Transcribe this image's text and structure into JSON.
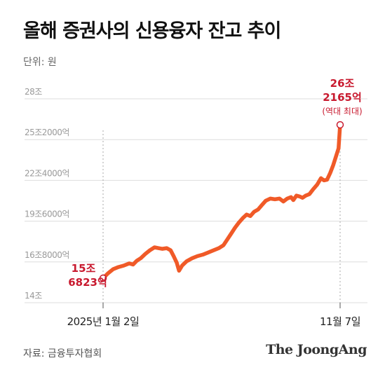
{
  "title": "올해 증권사의 신용융자 잔고 추이",
  "unit": "단위: 원",
  "source": "자료: 금융투자협회",
  "brand": "The JoongAng",
  "colors": {
    "line": "#f05a28",
    "annotation": "#c8192e",
    "grid": "#dddddd",
    "tick_text": "#9a9a9a",
    "guide": "#aaaaaa"
  },
  "chart_data": {
    "type": "line",
    "ylabel": "",
    "xlabel": "",
    "y_unit": "억원",
    "ylim": [
      140000,
      280000
    ],
    "yticks": [
      {
        "value": 140000,
        "label": "14조"
      },
      {
        "value": 168000,
        "label": "16조8000억"
      },
      {
        "value": 196000,
        "label": "19조6000억"
      },
      {
        "value": 224000,
        "label": "22조4000억"
      },
      {
        "value": 252000,
        "label": "25조2000억"
      },
      {
        "value": 280000,
        "label": "28조"
      }
    ],
    "xlim": [
      "2025-01-02",
      "2025-11-07"
    ],
    "xticks": [
      {
        "date": "2025-01-02",
        "label": "2025년 1월 2일"
      },
      {
        "date": "2025-11-07",
        "label": "11월 7일"
      }
    ],
    "grid": true,
    "series": [
      {
        "points": [
          [
            "2025-01-02",
            156823
          ],
          [
            "2025-01-08",
            160000
          ],
          [
            "2025-01-15",
            163000
          ],
          [
            "2025-01-22",
            164500
          ],
          [
            "2025-01-29",
            165500
          ],
          [
            "2025-02-05",
            167000
          ],
          [
            "2025-02-10",
            166200
          ],
          [
            "2025-02-15",
            168800
          ],
          [
            "2025-02-20",
            170500
          ],
          [
            "2025-02-26",
            173500
          ],
          [
            "2025-03-04",
            176000
          ],
          [
            "2025-03-10",
            178000
          ],
          [
            "2025-03-15",
            177500
          ],
          [
            "2025-03-20",
            177000
          ],
          [
            "2025-03-26",
            177500
          ],
          [
            "2025-03-31",
            176000
          ],
          [
            "2025-04-04",
            172000
          ],
          [
            "2025-04-08",
            167500
          ],
          [
            "2025-04-11",
            162000
          ],
          [
            "2025-04-15",
            165500
          ],
          [
            "2025-04-21",
            168500
          ],
          [
            "2025-04-28",
            170500
          ],
          [
            "2025-05-05",
            172000
          ],
          [
            "2025-05-12",
            173000
          ],
          [
            "2025-05-19",
            174500
          ],
          [
            "2025-05-26",
            176000
          ],
          [
            "2025-06-02",
            177500
          ],
          [
            "2025-06-08",
            179500
          ],
          [
            "2025-06-13",
            183500
          ],
          [
            "2025-06-18",
            187500
          ],
          [
            "2025-06-23",
            191500
          ],
          [
            "2025-06-28",
            195000
          ],
          [
            "2025-07-03",
            198000
          ],
          [
            "2025-07-08",
            200500
          ],
          [
            "2025-07-13",
            199500
          ],
          [
            "2025-07-18",
            202500
          ],
          [
            "2025-07-23",
            204000
          ],
          [
            "2025-07-28",
            207000
          ],
          [
            "2025-08-02",
            210000
          ],
          [
            "2025-08-08",
            211500
          ],
          [
            "2025-08-14",
            211000
          ],
          [
            "2025-08-20",
            211500
          ],
          [
            "2025-08-25",
            209500
          ],
          [
            "2025-08-30",
            211500
          ],
          [
            "2025-09-04",
            212500
          ],
          [
            "2025-09-07",
            210500
          ],
          [
            "2025-09-11",
            213500
          ],
          [
            "2025-09-15",
            213000
          ],
          [
            "2025-09-19",
            212000
          ],
          [
            "2025-09-23",
            213500
          ],
          [
            "2025-09-28",
            214500
          ],
          [
            "2025-10-03",
            218000
          ],
          [
            "2025-10-08",
            221000
          ],
          [
            "2025-10-13",
            225500
          ],
          [
            "2025-10-17",
            224000
          ],
          [
            "2025-10-21",
            224500
          ],
          [
            "2025-10-25",
            229000
          ],
          [
            "2025-10-29",
            234500
          ],
          [
            "2025-11-02",
            241000
          ],
          [
            "2025-11-05",
            246000
          ],
          [
            "2025-11-07",
            262165
          ]
        ]
      }
    ],
    "annotations": [
      {
        "date": "2025-01-02",
        "value": 156823,
        "lines": [
          "15조",
          "6823억"
        ]
      },
      {
        "date": "2025-11-07",
        "value": 262165,
        "lines": [
          "26조",
          "2165억"
        ],
        "note": "(역대 최대)"
      }
    ]
  }
}
